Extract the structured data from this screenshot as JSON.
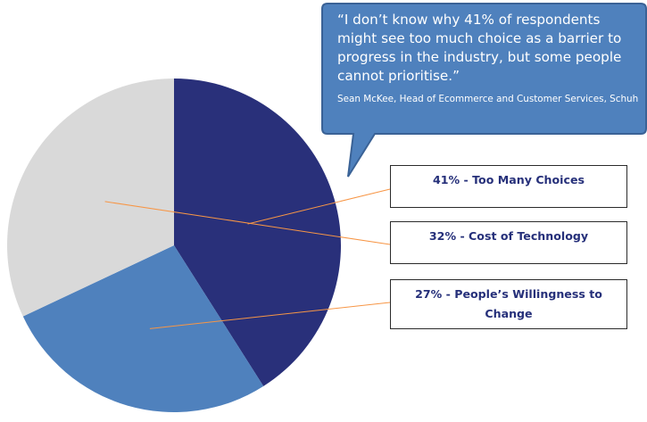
{
  "chart_data": {
    "type": "pie",
    "slices": [
      {
        "label": "41% - Too Many Choices",
        "value": 41,
        "color": "#29307a"
      },
      {
        "label": "32% - Cost of Technology",
        "value": 32,
        "color": "#d9d9d9"
      },
      {
        "label": "27% - People’s Willingness to Change",
        "value": 27,
        "color": "#4f81bd"
      }
    ]
  },
  "callout": {
    "quote": "“I don’t know why 41% of respondents might see too much choice as a barrier to progress in the industry, but some people cannot prioritise.”",
    "attribution": "Sean McKee, Head of Ecommerce and Customer Services, Schuh",
    "fill": "#4f81bd",
    "stroke": "#3a6296"
  },
  "leader_line_color": "#f79646"
}
